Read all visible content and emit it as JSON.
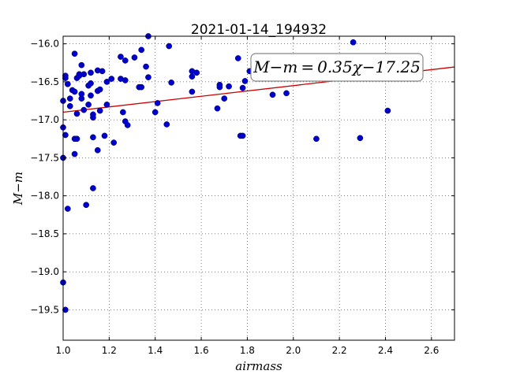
{
  "chart_data": {
    "type": "scatter",
    "title": "2021-01-14_194932",
    "xlabel": "airmass",
    "ylabel": "M−m",
    "xlim": [
      1.0,
      2.7
    ],
    "ylim": [
      -19.9,
      -15.9
    ],
    "y_inverted": true,
    "grid": true,
    "x_ticks": [
      1.0,
      1.2,
      1.4,
      1.6,
      1.8,
      2.0,
      2.2,
      2.4,
      2.6
    ],
    "x_tick_labels": [
      "1.0",
      "1.2",
      "1.4",
      "1.6",
      "1.8",
      "2.0",
      "2.2",
      "2.4",
      "2.6"
    ],
    "y_ticks": [
      -16.0,
      -16.5,
      -17.0,
      -17.5,
      -18.0,
      -18.5,
      -19.0,
      -19.5
    ],
    "y_tick_labels": [
      "−16.0",
      "−16.5",
      "−17.0",
      "−17.5",
      "−18.0",
      "−18.5",
      "−19.0",
      "−19.5"
    ],
    "point_color": "#0000cc",
    "fit_color": "#cc0000",
    "fit": {
      "slope": 0.35,
      "intercept": -17.25
    },
    "annotation": "M−m = 0.35χ−17.25",
    "points": [
      {
        "x": 1.0,
        "y": -16.75
      },
      {
        "x": 1.0,
        "y": -17.1
      },
      {
        "x": 1.0,
        "y": -17.5
      },
      {
        "x": 1.0,
        "y": -19.14
      },
      {
        "x": 1.01,
        "y": -19.5
      },
      {
        "x": 1.01,
        "y": -16.42
      },
      {
        "x": 1.01,
        "y": -16.45
      },
      {
        "x": 1.01,
        "y": -17.2
      },
      {
        "x": 1.02,
        "y": -16.53
      },
      {
        "x": 1.02,
        "y": -18.17
      },
      {
        "x": 1.03,
        "y": -16.72
      },
      {
        "x": 1.03,
        "y": -16.82
      },
      {
        "x": 1.04,
        "y": -16.61
      },
      {
        "x": 1.05,
        "y": -16.13
      },
      {
        "x": 1.05,
        "y": -16.63
      },
      {
        "x": 1.05,
        "y": -17.25
      },
      {
        "x": 1.05,
        "y": -17.45
      },
      {
        "x": 1.06,
        "y": -16.45
      },
      {
        "x": 1.06,
        "y": -16.92
      },
      {
        "x": 1.06,
        "y": -17.25
      },
      {
        "x": 1.07,
        "y": -16.42
      },
      {
        "x": 1.07,
        "y": -16.4
      },
      {
        "x": 1.08,
        "y": -16.28
      },
      {
        "x": 1.08,
        "y": -16.66
      },
      {
        "x": 1.08,
        "y": -16.72
      },
      {
        "x": 1.09,
        "y": -16.4
      },
      {
        "x": 1.09,
        "y": -16.87
      },
      {
        "x": 1.1,
        "y": -18.12
      },
      {
        "x": 1.11,
        "y": -16.55
      },
      {
        "x": 1.11,
        "y": -16.8
      },
      {
        "x": 1.12,
        "y": -16.38
      },
      {
        "x": 1.12,
        "y": -16.52
      },
      {
        "x": 1.12,
        "y": -16.68
      },
      {
        "x": 1.13,
        "y": -16.93
      },
      {
        "x": 1.13,
        "y": -16.97
      },
      {
        "x": 1.13,
        "y": -17.23
      },
      {
        "x": 1.13,
        "y": -17.9
      },
      {
        "x": 1.15,
        "y": -16.35
      },
      {
        "x": 1.15,
        "y": -16.62
      },
      {
        "x": 1.15,
        "y": -17.4
      },
      {
        "x": 1.16,
        "y": -16.6
      },
      {
        "x": 1.16,
        "y": -16.88
      },
      {
        "x": 1.17,
        "y": -16.36
      },
      {
        "x": 1.18,
        "y": -17.21
      },
      {
        "x": 1.19,
        "y": -16.5
      },
      {
        "x": 1.19,
        "y": -16.8
      },
      {
        "x": 1.21,
        "y": -16.46
      },
      {
        "x": 1.22,
        "y": -17.3
      },
      {
        "x": 1.25,
        "y": -16.17
      },
      {
        "x": 1.25,
        "y": -16.46
      },
      {
        "x": 1.26,
        "y": -16.9
      },
      {
        "x": 1.27,
        "y": -16.22
      },
      {
        "x": 1.27,
        "y": -16.48
      },
      {
        "x": 1.27,
        "y": -17.02
      },
      {
        "x": 1.28,
        "y": -17.07
      },
      {
        "x": 1.31,
        "y": -16.18
      },
      {
        "x": 1.33,
        "y": -16.57
      },
      {
        "x": 1.34,
        "y": -16.08
      },
      {
        "x": 1.34,
        "y": -16.57
      },
      {
        "x": 1.36,
        "y": -16.3
      },
      {
        "x": 1.37,
        "y": -16.44
      },
      {
        "x": 1.37,
        "y": -15.9
      },
      {
        "x": 1.4,
        "y": -16.9
      },
      {
        "x": 1.41,
        "y": -16.78
      },
      {
        "x": 1.45,
        "y": -17.06
      },
      {
        "x": 1.46,
        "y": -16.03
      },
      {
        "x": 1.47,
        "y": -16.51
      },
      {
        "x": 1.56,
        "y": -16.36
      },
      {
        "x": 1.56,
        "y": -16.43
      },
      {
        "x": 1.56,
        "y": -16.63
      },
      {
        "x": 1.58,
        "y": -16.38
      },
      {
        "x": 1.67,
        "y": -16.85
      },
      {
        "x": 1.68,
        "y": -16.54
      },
      {
        "x": 1.68,
        "y": -16.57
      },
      {
        "x": 1.7,
        "y": -16.72
      },
      {
        "x": 1.72,
        "y": -16.56
      },
      {
        "x": 1.76,
        "y": -16.19
      },
      {
        "x": 1.77,
        "y": -17.21
      },
      {
        "x": 1.78,
        "y": -16.58
      },
      {
        "x": 1.78,
        "y": -17.21
      },
      {
        "x": 1.79,
        "y": -16.49
      },
      {
        "x": 1.81,
        "y": -16.36
      },
      {
        "x": 1.91,
        "y": -16.67
      },
      {
        "x": 1.97,
        "y": -16.65
      },
      {
        "x": 2.1,
        "y": -17.25
      },
      {
        "x": 2.26,
        "y": -15.98
      },
      {
        "x": 2.29,
        "y": -17.24
      },
      {
        "x": 2.41,
        "y": -16.88
      }
    ]
  }
}
